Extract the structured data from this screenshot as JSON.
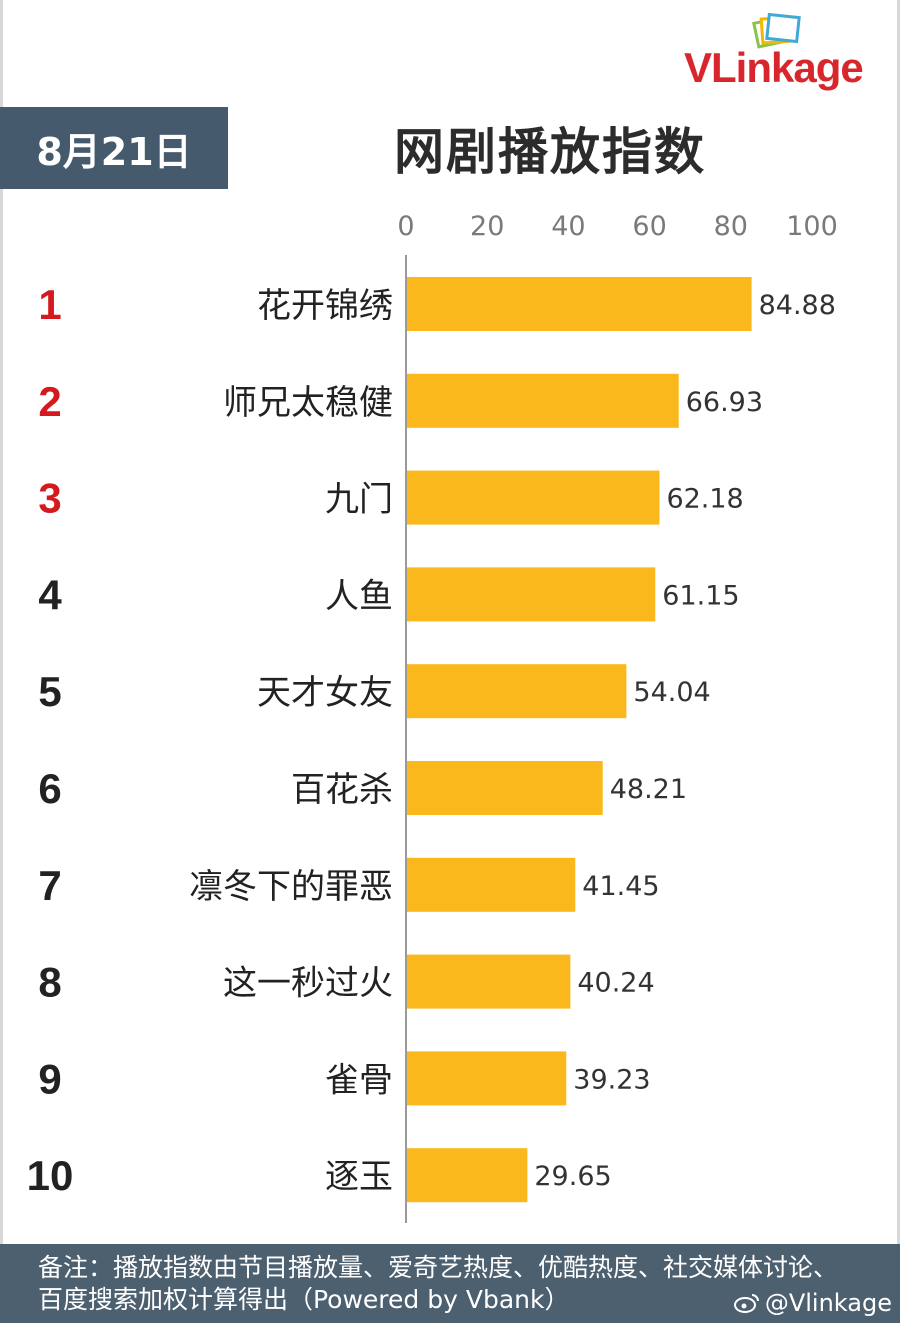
{
  "header": {
    "date": "8月21日",
    "title": "网剧播放指数",
    "logo_v": "V",
    "logo_rest": "Linkage"
  },
  "footer": {
    "note": "备注：播放指数由节目播放量、爱奇艺热度、优酷热度、社交媒体讨论、百度搜索加权计算得出（Powered by Vbank）",
    "watermark": "@Vlinkage"
  },
  "colors": {
    "bar": "#fbb81c",
    "top_rank": "#d21a1f",
    "rank": "#222222",
    "header_box": "#455a6c",
    "footer_bg": "#4d6070"
  },
  "chart_data": {
    "type": "bar",
    "orientation": "horizontal",
    "ranks": [
      "1",
      "2",
      "3",
      "4",
      "5",
      "6",
      "7",
      "8",
      "9",
      "10"
    ],
    "categories": [
      "花开锦绣",
      "师兄太稳健",
      "九门",
      "人鱼",
      "天才女友",
      "百花杀",
      "凛冬下的罪恶",
      "这一秒过火",
      "雀骨",
      "逐玉"
    ],
    "values": [
      84.88,
      66.93,
      62.18,
      61.15,
      54.04,
      48.21,
      41.45,
      40.24,
      39.23,
      29.65
    ],
    "value_labels": [
      "84.88",
      "66.93",
      "62.18",
      "61.15",
      "54.04",
      "48.21",
      "41.45",
      "40.24",
      "39.23",
      "29.65"
    ],
    "xlim": [
      0,
      100
    ],
    "x_ticks": [
      "0",
      "20",
      "40",
      "60",
      "80",
      "100"
    ],
    "x_axis_position": "top",
    "grid": false,
    "legend": "none"
  }
}
